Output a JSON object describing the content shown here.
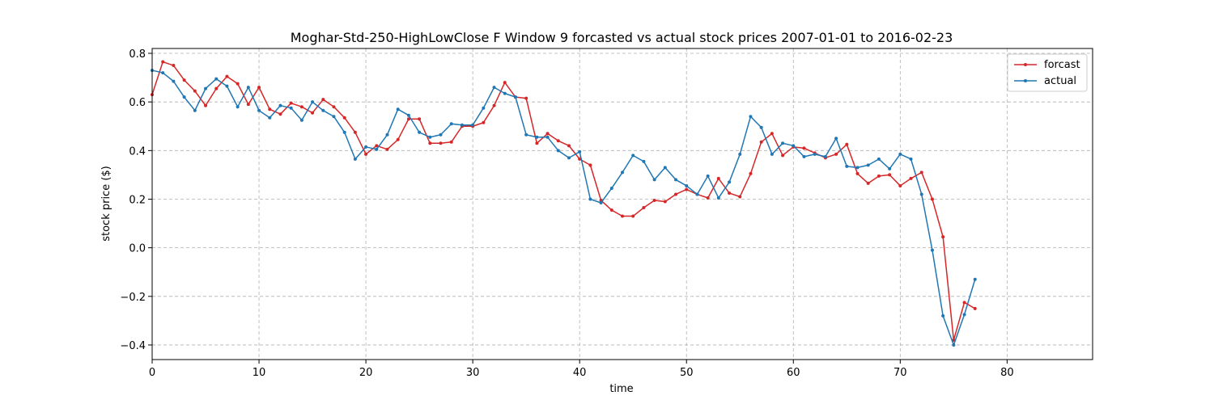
{
  "chart_data": {
    "type": "line",
    "title": "Moghar-Std-250-HighLowClose F Window 9 forcasted vs actual stock prices 2007-01-01 to 2016-02-23",
    "xlabel": "time",
    "ylabel": "stock price ($)",
    "xlim": [
      0,
      88
    ],
    "ylim": [
      -0.46,
      0.82
    ],
    "xticks": [
      0,
      10,
      20,
      30,
      40,
      50,
      60,
      70,
      80
    ],
    "yticks": [
      -0.4,
      -0.2,
      0.0,
      0.2,
      0.4,
      0.6,
      0.8
    ],
    "xtick_labels": [
      "0",
      "10",
      "20",
      "30",
      "40",
      "50",
      "60",
      "70",
      "80"
    ],
    "ytick_labels": [
      "−0.4",
      "−0.2",
      "0.0",
      "0.2",
      "0.4",
      "0.6",
      "0.8"
    ],
    "grid": true,
    "legend_position": "top-right",
    "series": [
      {
        "name": "forcast",
        "color": "#d62728",
        "values": [
          0.63,
          0.765,
          0.75,
          0.69,
          0.645,
          0.585,
          0.655,
          0.705,
          0.675,
          0.59,
          0.66,
          0.57,
          0.55,
          0.595,
          0.58,
          0.555,
          0.61,
          0.58,
          0.535,
          0.475,
          0.385,
          0.42,
          0.405,
          0.445,
          0.53,
          0.53,
          0.43,
          0.43,
          0.435,
          0.5,
          0.5,
          0.515,
          0.585,
          0.68,
          0.62,
          0.615,
          0.43,
          0.47,
          0.44,
          0.42,
          0.365,
          0.34,
          0.195,
          0.155,
          0.13,
          0.13,
          0.165,
          0.195,
          0.19,
          0.22,
          0.24,
          0.22,
          0.205,
          0.285,
          0.225,
          0.21,
          0.305,
          0.435,
          0.47,
          0.38,
          0.415,
          0.41,
          0.39,
          0.37,
          0.385,
          0.425,
          0.305,
          0.265,
          0.295,
          0.3,
          0.255,
          0.285,
          0.31,
          0.2,
          0.045,
          -0.38,
          -0.225,
          -0.25
        ]
      },
      {
        "name": "actual",
        "color": "#1f77b4",
        "values": [
          0.73,
          0.72,
          0.685,
          0.62,
          0.565,
          0.655,
          0.695,
          0.665,
          0.58,
          0.66,
          0.565,
          0.535,
          0.585,
          0.575,
          0.525,
          0.6,
          0.565,
          0.54,
          0.475,
          0.365,
          0.415,
          0.405,
          0.465,
          0.57,
          0.545,
          0.475,
          0.455,
          0.465,
          0.51,
          0.505,
          0.505,
          0.575,
          0.66,
          0.635,
          0.62,
          0.465,
          0.455,
          0.455,
          0.4,
          0.37,
          0.395,
          0.2,
          0.185,
          0.245,
          0.31,
          0.38,
          0.355,
          0.28,
          0.33,
          0.28,
          0.255,
          0.22,
          0.295,
          0.205,
          0.27,
          0.385,
          0.54,
          0.495,
          0.385,
          0.43,
          0.42,
          0.375,
          0.385,
          0.375,
          0.45,
          0.335,
          0.33,
          0.34,
          0.365,
          0.325,
          0.385,
          0.365,
          0.22,
          -0.01,
          -0.28,
          -0.4,
          -0.275,
          -0.13
        ]
      }
    ]
  }
}
